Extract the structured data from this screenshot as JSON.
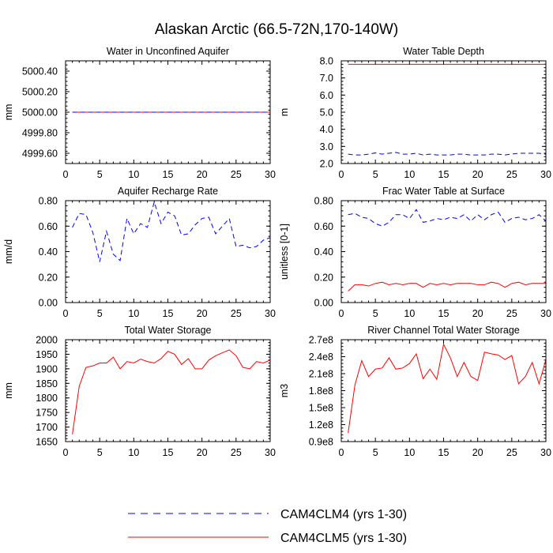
{
  "figure": {
    "title": "Alaskan Arctic (66.5-72N,170-140W)"
  },
  "legend": [
    {
      "label": "CAM4CLM4 (yrs 1-30)",
      "color": "#0000ff",
      "style": "dashed"
    },
    {
      "label": "CAM4CLM5 (yrs 1-30)",
      "color": "#ff0000",
      "style": "solid"
    }
  ],
  "chart_data": [
    {
      "type": "line",
      "title": "Water in Unconfined Aquifer",
      "ylabel": "mm",
      "xlim": [
        0,
        30
      ],
      "ylim": [
        4999.5,
        5000.5
      ],
      "xticks": [
        0,
        5,
        10,
        15,
        20,
        25,
        30
      ],
      "yticks": [
        4999.6,
        4999.8,
        5000.0,
        5000.2,
        5000.4
      ],
      "yticklabels": [
        "4999.60",
        "4999.80",
        "5000.00",
        "5000.20",
        "5000.40"
      ],
      "x": [
        1,
        2,
        3,
        4,
        5,
        6,
        7,
        8,
        9,
        10,
        11,
        12,
        13,
        14,
        15,
        16,
        17,
        18,
        19,
        20,
        21,
        22,
        23,
        24,
        25,
        26,
        27,
        28,
        29,
        30
      ],
      "series": [
        {
          "name": "CAM4CLM4 (yrs 1-30)",
          "values": [
            5000,
            5000,
            5000,
            5000,
            5000,
            5000,
            5000,
            5000,
            5000,
            5000,
            5000,
            5000,
            5000,
            5000,
            5000,
            5000,
            5000,
            5000,
            5000,
            5000,
            5000,
            5000,
            5000,
            5000,
            5000,
            5000,
            5000,
            5000,
            5000,
            5000
          ]
        },
        {
          "name": "CAM4CLM5 (yrs 1-30)",
          "values": [
            5000,
            5000,
            5000,
            5000,
            5000,
            5000,
            5000,
            5000,
            5000,
            5000,
            5000,
            5000,
            5000,
            5000,
            5000,
            5000,
            5000,
            5000,
            5000,
            5000,
            5000,
            5000,
            5000,
            5000,
            5000,
            5000,
            5000,
            5000,
            5000,
            5000
          ]
        }
      ]
    },
    {
      "type": "line",
      "title": "Water Table Depth",
      "ylabel": "m",
      "xlim": [
        0,
        30
      ],
      "ylim": [
        2.0,
        8.0
      ],
      "xticks": [
        0,
        5,
        10,
        15,
        20,
        25,
        30
      ],
      "yticks": [
        2.0,
        3.0,
        4.0,
        5.0,
        6.0,
        7.0,
        8.0
      ],
      "yticklabels": [
        "2.0",
        "3.0",
        "4.0",
        "5.0",
        "6.0",
        "7.0",
        "8.0"
      ],
      "x": [
        1,
        2,
        3,
        4,
        5,
        6,
        7,
        8,
        9,
        10,
        11,
        12,
        13,
        14,
        15,
        16,
        17,
        18,
        19,
        20,
        21,
        22,
        23,
        24,
        25,
        26,
        27,
        28,
        29,
        30
      ],
      "series": [
        {
          "name": "CAM4CLM4 (yrs 1-30)",
          "values": [
            2.55,
            2.5,
            2.5,
            2.55,
            2.62,
            2.55,
            2.6,
            2.65,
            2.55,
            2.55,
            2.6,
            2.5,
            2.55,
            2.5,
            2.5,
            2.5,
            2.55,
            2.55,
            2.5,
            2.5,
            2.5,
            2.55,
            2.55,
            2.5,
            2.55,
            2.6,
            2.6,
            2.6,
            2.6,
            2.55
          ]
        },
        {
          "name": "CAM4CLM5 (yrs 1-30)",
          "values": [
            7.8,
            7.8,
            7.8,
            7.8,
            7.8,
            7.8,
            7.8,
            7.8,
            7.8,
            7.8,
            7.8,
            7.8,
            7.8,
            7.8,
            7.8,
            7.8,
            7.8,
            7.8,
            7.8,
            7.8,
            7.8,
            7.8,
            7.8,
            7.8,
            7.8,
            7.8,
            7.8,
            7.8,
            7.8,
            7.8
          ]
        }
      ]
    },
    {
      "type": "line",
      "title": "Aquifer Recharge Rate",
      "ylabel": "mm/d",
      "xlim": [
        0,
        30
      ],
      "ylim": [
        0.0,
        0.8
      ],
      "xticks": [
        0,
        5,
        10,
        15,
        20,
        25,
        30
      ],
      "yticks": [
        0.0,
        0.2,
        0.4,
        0.6,
        0.8
      ],
      "yticklabels": [
        "0.00",
        "0.20",
        "0.40",
        "0.60",
        "0.80"
      ],
      "x": [
        1,
        2,
        3,
        4,
        5,
        6,
        7,
        8,
        9,
        10,
        11,
        12,
        13,
        14,
        15,
        16,
        17,
        18,
        19,
        20,
        21,
        22,
        23,
        24,
        25,
        26,
        27,
        28,
        29,
        30
      ],
      "series": [
        {
          "name": "CAM4CLM4 (yrs 1-30)",
          "values": [
            0.59,
            0.7,
            0.69,
            0.55,
            0.32,
            0.56,
            0.38,
            0.33,
            0.66,
            0.54,
            0.62,
            0.59,
            0.79,
            0.62,
            0.71,
            0.68,
            0.53,
            0.54,
            0.61,
            0.66,
            0.67,
            0.54,
            0.6,
            0.66,
            0.44,
            0.45,
            0.43,
            0.44,
            0.49,
            0.51
          ]
        },
        {
          "name": "CAM4CLM5 (yrs 1-30)",
          "values": [
            0,
            0,
            0,
            0,
            0,
            0,
            0,
            0,
            0,
            0,
            0,
            0,
            0,
            0,
            0,
            0,
            0,
            0,
            0,
            0,
            0,
            0,
            0,
            0,
            0,
            0,
            0,
            0,
            0,
            0
          ]
        }
      ]
    },
    {
      "type": "line",
      "title": "Frac Water Table at Surface",
      "ylabel": "unitless [0-1]",
      "xlim": [
        0,
        30
      ],
      "ylim": [
        0.0,
        0.8
      ],
      "xticks": [
        0,
        5,
        10,
        15,
        20,
        25,
        30
      ],
      "yticks": [
        0.0,
        0.2,
        0.4,
        0.6,
        0.8
      ],
      "yticklabels": [
        "0.00",
        "0.20",
        "0.40",
        "0.60",
        "0.80"
      ],
      "x": [
        1,
        2,
        3,
        4,
        5,
        6,
        7,
        8,
        9,
        10,
        11,
        12,
        13,
        14,
        15,
        16,
        17,
        18,
        19,
        20,
        21,
        22,
        23,
        24,
        25,
        26,
        27,
        28,
        29,
        30
      ],
      "series": [
        {
          "name": "CAM4CLM4 (yrs 1-30)",
          "values": [
            0.69,
            0.7,
            0.67,
            0.66,
            0.62,
            0.6,
            0.63,
            0.69,
            0.69,
            0.66,
            0.73,
            0.63,
            0.64,
            0.66,
            0.65,
            0.67,
            0.66,
            0.69,
            0.64,
            0.69,
            0.65,
            0.69,
            0.71,
            0.63,
            0.66,
            0.67,
            0.65,
            0.66,
            0.69,
            0.64
          ]
        },
        {
          "name": "CAM4CLM5 (yrs 1-30)",
          "values": [
            0.09,
            0.14,
            0.14,
            0.13,
            0.15,
            0.16,
            0.14,
            0.15,
            0.14,
            0.15,
            0.15,
            0.12,
            0.15,
            0.14,
            0.15,
            0.14,
            0.15,
            0.15,
            0.15,
            0.14,
            0.14,
            0.16,
            0.15,
            0.12,
            0.15,
            0.16,
            0.14,
            0.15,
            0.15,
            0.15
          ]
        }
      ]
    },
    {
      "type": "line",
      "title": "Total Water Storage",
      "ylabel": "mm",
      "xlim": [
        0,
        30
      ],
      "ylim": [
        1650,
        2000
      ],
      "xticks": [
        0,
        5,
        10,
        15,
        20,
        25,
        30
      ],
      "yticks": [
        1650,
        1700,
        1750,
        1800,
        1850,
        1900,
        1950,
        2000
      ],
      "yticklabels": [
        "1650",
        "1700",
        "1750",
        "1800",
        "1850",
        "1900",
        "1950",
        "2000"
      ],
      "x": [
        1,
        2,
        3,
        4,
        5,
        6,
        7,
        8,
        9,
        10,
        11,
        12,
        13,
        14,
        15,
        16,
        17,
        18,
        19,
        20,
        21,
        22,
        23,
        24,
        25,
        26,
        27,
        28,
        29,
        30
      ],
      "series": [
        {
          "name": "CAM4CLM5 (yrs 1-30)",
          "values": [
            1675,
            1840,
            1905,
            1910,
            1920,
            1920,
            1940,
            1900,
            1925,
            1920,
            1933,
            1925,
            1920,
            1935,
            1960,
            1950,
            1915,
            1935,
            1900,
            1900,
            1930,
            1945,
            1955,
            1965,
            1945,
            1905,
            1900,
            1925,
            1920,
            1930
          ]
        }
      ]
    },
    {
      "type": "line",
      "title": "River Channel Total Water Storage",
      "ylabel": "m3",
      "xlim": [
        0,
        30
      ],
      "ylim": [
        90000000,
        270000000
      ],
      "xticks": [
        0,
        5,
        10,
        15,
        20,
        25,
        30
      ],
      "yticks": [
        90000000,
        120000000,
        150000000,
        180000000,
        210000000,
        240000000,
        270000000
      ],
      "yticklabels": [
        "0.9e8",
        "1.2e8",
        "1.5e8",
        "1.8e8",
        "2.1e8",
        "2.4e8",
        "2.7e8"
      ],
      "x": [
        1,
        2,
        3,
        4,
        5,
        6,
        7,
        8,
        9,
        10,
        11,
        12,
        13,
        14,
        15,
        16,
        17,
        18,
        19,
        20,
        21,
        22,
        23,
        24,
        25,
        26,
        27,
        28,
        29,
        30
      ],
      "series": [
        {
          "name": "CAM4CLM5 (yrs 1-30)",
          "values": [
            105000000,
            190000000,
            233000000,
            205000000,
            218000000,
            220000000,
            238000000,
            218000000,
            220000000,
            228000000,
            245000000,
            201000000,
            218000000,
            200000000,
            262000000,
            238000000,
            205000000,
            230000000,
            205000000,
            198000000,
            248000000,
            245000000,
            243000000,
            235000000,
            242000000,
            192000000,
            205000000,
            230000000,
            192000000,
            235000000
          ]
        }
      ]
    }
  ]
}
